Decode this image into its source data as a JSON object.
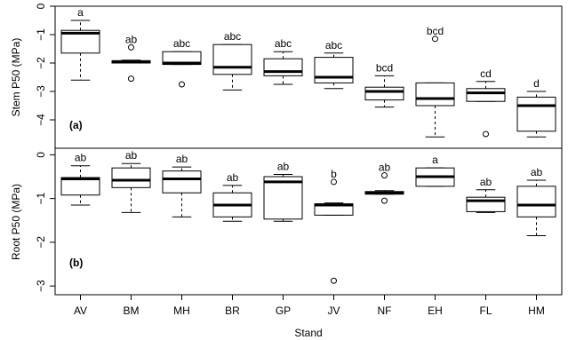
{
  "chart_data": {
    "type": "boxplot",
    "xlabel": "Stand",
    "categories": [
      "AV",
      "BM",
      "MH",
      "BR",
      "GP",
      "JV",
      "NF",
      "EH",
      "FL",
      "HM"
    ],
    "panels": [
      {
        "label": "(a)",
        "ylabel": "Stem P50 (MPa)",
        "ylim": [
          -5,
          0
        ],
        "yticks": [
          "0",
          "−1",
          "−2",
          "−3",
          "−4"
        ],
        "ytick_values": [
          0,
          -1,
          -2,
          -3,
          -4
        ],
        "boxes": [
          {
            "q1": -1.65,
            "median": -0.95,
            "q3": -0.85,
            "whisker_low": -2.6,
            "whisker_high": -0.5,
            "outliers": [],
            "letter": "a"
          },
          {
            "q1": -2.0,
            "median": -1.95,
            "q3": -1.92,
            "whisker_low": -2.0,
            "whisker_high": -1.9,
            "outliers": [
              -1.45,
              -2.55
            ],
            "letter": "ab"
          },
          {
            "q1": -2.05,
            "median": -2.0,
            "q3": -1.6,
            "whisker_low": -2.05,
            "whisker_high": -1.6,
            "outliers": [
              -2.75
            ],
            "letter": "abc"
          },
          {
            "q1": -2.4,
            "median": -2.15,
            "q3": -1.35,
            "whisker_low": -2.95,
            "whisker_high": -1.35,
            "outliers": [],
            "letter": "abc"
          },
          {
            "q1": -2.45,
            "median": -2.3,
            "q3": -1.85,
            "whisker_low": -2.75,
            "whisker_high": -1.6,
            "outliers": [],
            "letter": "abc"
          },
          {
            "q1": -2.7,
            "median": -2.5,
            "q3": -1.8,
            "whisker_low": -2.9,
            "whisker_high": -1.65,
            "outliers": [],
            "letter": "abc"
          },
          {
            "q1": -3.3,
            "median": -3.0,
            "q3": -2.85,
            "whisker_low": -3.55,
            "whisker_high": -2.45,
            "outliers": [],
            "letter": "bcd"
          },
          {
            "q1": -3.5,
            "median": -3.25,
            "q3": -2.7,
            "whisker_low": -4.6,
            "whisker_high": -2.7,
            "outliers": [
              -1.15
            ],
            "letter": "bcd"
          },
          {
            "q1": -3.35,
            "median": -3.05,
            "q3": -2.9,
            "whisker_low": -3.35,
            "whisker_high": -2.65,
            "outliers": [
              -4.5
            ],
            "letter": "cd"
          },
          {
            "q1": -4.4,
            "median": -3.5,
            "q3": -3.2,
            "whisker_low": -4.6,
            "whisker_high": -3.0,
            "outliers": [],
            "letter": "d"
          }
        ]
      },
      {
        "label": "(b)",
        "ylabel": "Root P50 (MPa)",
        "ylim": [
          -3.2,
          0.15
        ],
        "yticks": [
          "0",
          "−1",
          "−2",
          "−3"
        ],
        "ytick_values": [
          0,
          -1,
          -2,
          -3
        ],
        "boxes": [
          {
            "q1": -0.92,
            "median": -0.55,
            "q3": -0.52,
            "whisker_low": -1.15,
            "whisker_high": -0.25,
            "outliers": [],
            "letter": "ab"
          },
          {
            "q1": -0.75,
            "median": -0.58,
            "q3": -0.3,
            "whisker_low": -1.32,
            "whisker_high": -0.2,
            "outliers": [],
            "letter": "ab"
          },
          {
            "q1": -0.87,
            "median": -0.55,
            "q3": -0.37,
            "whisker_low": -1.42,
            "whisker_high": -0.28,
            "outliers": [],
            "letter": "ab"
          },
          {
            "q1": -1.42,
            "median": -1.15,
            "q3": -0.87,
            "whisker_low": -1.52,
            "whisker_high": -0.7,
            "outliers": [],
            "letter": "ab"
          },
          {
            "q1": -1.47,
            "median": -0.62,
            "q3": -0.5,
            "whisker_low": -1.52,
            "whisker_high": -0.45,
            "outliers": [],
            "letter": "ab"
          },
          {
            "q1": -1.38,
            "median": -1.15,
            "q3": -1.12,
            "whisker_low": -1.38,
            "whisker_high": -1.1,
            "outliers": [
              -0.62,
              -2.88
            ],
            "letter": "b"
          },
          {
            "q1": -0.9,
            "median": -0.87,
            "q3": -0.84,
            "whisker_low": -0.9,
            "whisker_high": -0.82,
            "outliers": [
              -0.47,
              -1.05
            ],
            "letter": "ab"
          },
          {
            "q1": -0.72,
            "median": -0.5,
            "q3": -0.3,
            "whisker_low": -0.72,
            "whisker_high": -0.3,
            "outliers": [],
            "letter": "a"
          },
          {
            "q1": -1.3,
            "median": -1.05,
            "q3": -0.97,
            "whisker_low": -1.32,
            "whisker_high": -0.8,
            "outliers": [],
            "letter": "ab"
          },
          {
            "q1": -1.42,
            "median": -1.15,
            "q3": -0.72,
            "whisker_low": -1.85,
            "whisker_high": -0.58,
            "outliers": [],
            "letter": "ab"
          }
        ]
      }
    ]
  }
}
